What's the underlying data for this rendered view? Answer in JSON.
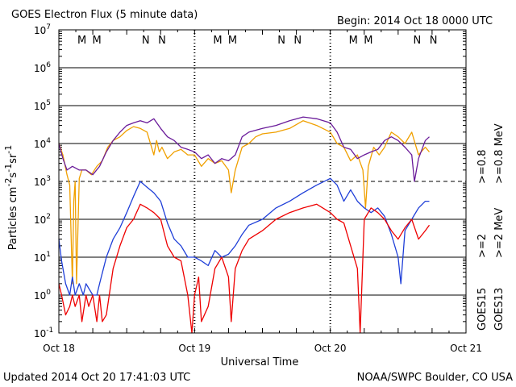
{
  "header": {
    "title": "GOES Electron Flux (5 minute data)",
    "begin": "Begin: 2014 Oct 18 0000 UTC"
  },
  "footer": {
    "updated": "Updated 2014 Oct 20 17:41:03 UTC",
    "credit": "NOAA/SWPC Boulder, CO USA"
  },
  "legend": {
    "series_right": [
      {
        "label": ">=0.8 MeV",
        "color": "#f0a000"
      },
      {
        "label": ">=2 MeV",
        "color": "#ee0000"
      }
    ],
    "series_left": [
      {
        "label": ">=0.8",
        "color": "#6a1b9a"
      },
      {
        "label": ">=2",
        "color": "#1f3fd8"
      }
    ],
    "satellites": [
      "GOES15",
      "GOES13"
    ]
  },
  "chart_data": {
    "type": "line",
    "title": "GOES Electron Flux (5 minute data)",
    "xlabel": "Universal Time",
    "ylabel": "Particles cm-2s-1sr-1",
    "y_scale": "log",
    "ylim": [
      0.1,
      10000000
    ],
    "xlim_days": [
      0,
      3
    ],
    "x_ticks": [
      {
        "label": "Oct 18",
        "day": 0
      },
      {
        "label": "Oct 19",
        "day": 1
      },
      {
        "label": "Oct 20",
        "day": 2
      },
      {
        "label": "Oct 21",
        "day": 3
      }
    ],
    "y_ticks": [
      {
        "base": "10",
        "exp": "-1",
        "value": 0.1
      },
      {
        "base": "10",
        "exp": "0",
        "value": 1
      },
      {
        "base": "10",
        "exp": "1",
        "value": 10
      },
      {
        "base": "10",
        "exp": "2",
        "value": 100
      },
      {
        "base": "10",
        "exp": "3",
        "value": 1000
      },
      {
        "base": "10",
        "exp": "4",
        "value": 10000
      },
      {
        "base": "10",
        "exp": "5",
        "value": 100000
      },
      {
        "base": "10",
        "exp": "6",
        "value": 1000000
      },
      {
        "base": "10",
        "exp": "7",
        "value": 10000000
      }
    ],
    "threshold_line": 1000,
    "midnight_markers": [
      {
        "day": 0.17,
        "label": "M",
        "color": "#ee0000"
      },
      {
        "day": 0.28,
        "label": "M",
        "color": "#1f3fd8"
      },
      {
        "day": 0.64,
        "label": "N",
        "color": "#ee0000"
      },
      {
        "day": 0.76,
        "label": "N",
        "color": "#1f3fd8"
      },
      {
        "day": 1.17,
        "label": "M",
        "color": "#ee0000"
      },
      {
        "day": 1.28,
        "label": "M",
        "color": "#1f3fd8"
      },
      {
        "day": 1.64,
        "label": "N",
        "color": "#ee0000"
      },
      {
        "day": 1.76,
        "label": "N",
        "color": "#1f3fd8"
      },
      {
        "day": 2.17,
        "label": "M",
        "color": "#ee0000"
      },
      {
        "day": 2.28,
        "label": "M",
        "color": "#1f3fd8"
      },
      {
        "day": 2.64,
        "label": "N",
        "color": "#ee0000"
      },
      {
        "day": 2.76,
        "label": "N",
        "color": "#1f3fd8"
      }
    ],
    "series": [
      {
        "name": "GOES13 >=0.8 MeV",
        "color": "#f0a000",
        "x": [
          0.0,
          0.03,
          0.06,
          0.08,
          0.1,
          0.11,
          0.12,
          0.13,
          0.15,
          0.17,
          0.2,
          0.24,
          0.28,
          0.32,
          0.36,
          0.4,
          0.45,
          0.5,
          0.55,
          0.6,
          0.65,
          0.7,
          0.72,
          0.74,
          0.76,
          0.8,
          0.85,
          0.9,
          0.95,
          1.0,
          1.05,
          1.1,
          1.15,
          1.2,
          1.25,
          1.27,
          1.3,
          1.35,
          1.4,
          1.45,
          1.5,
          1.6,
          1.7,
          1.8,
          1.9,
          2.0,
          2.05,
          2.1,
          2.15,
          2.2,
          2.24,
          2.26,
          2.28,
          2.32,
          2.36,
          2.4,
          2.45,
          2.5,
          2.55,
          2.6,
          2.65,
          2.7,
          2.73
        ],
        "values": [
          10000,
          5000,
          1500,
          800,
          2,
          300,
          1000,
          2,
          1200,
          2000,
          2000,
          1500,
          2500,
          3500,
          8000,
          12000,
          15000,
          22000,
          28000,
          25000,
          20000,
          5000,
          12000,
          6000,
          8000,
          4000,
          6000,
          7000,
          5000,
          5000,
          2500,
          4000,
          3000,
          3500,
          2000,
          500,
          2000,
          8000,
          10000,
          15000,
          18000,
          20000,
          25000,
          40000,
          30000,
          20000,
          10000,
          8000,
          3500,
          5000,
          2000,
          200,
          2500,
          8000,
          5000,
          8000,
          20000,
          15000,
          10000,
          20000,
          5000,
          8000,
          6000
        ]
      },
      {
        "name": "GOES15 >=0.8 MeV",
        "color": "#6a1b9a",
        "x": [
          0.0,
          0.03,
          0.06,
          0.1,
          0.15,
          0.2,
          0.25,
          0.3,
          0.35,
          0.4,
          0.45,
          0.5,
          0.55,
          0.6,
          0.65,
          0.7,
          0.75,
          0.8,
          0.85,
          0.9,
          0.95,
          1.0,
          1.05,
          1.1,
          1.15,
          1.2,
          1.25,
          1.3,
          1.35,
          1.4,
          1.5,
          1.6,
          1.7,
          1.8,
          1.9,
          2.0,
          2.05,
          2.1,
          2.15,
          2.2,
          2.25,
          2.3,
          2.35,
          2.4,
          2.45,
          2.5,
          2.55,
          2.6,
          2.62,
          2.65,
          2.7,
          2.73
        ],
        "values": [
          10000,
          4000,
          2000,
          2500,
          2000,
          2000,
          1500,
          2500,
          6000,
          12000,
          20000,
          30000,
          35000,
          40000,
          35000,
          45000,
          25000,
          15000,
          12000,
          8000,
          7000,
          6000,
          4000,
          5000,
          3000,
          4000,
          3500,
          5000,
          15000,
          20000,
          25000,
          30000,
          40000,
          50000,
          45000,
          35000,
          20000,
          8000,
          7000,
          4000,
          5000,
          6000,
          7000,
          12000,
          15000,
          12000,
          8000,
          5000,
          1000,
          4000,
          12000,
          15000
        ]
      },
      {
        "name": "GOES15 >=2 MeV",
        "color": "#1f3fd8",
        "x": [
          0.0,
          0.02,
          0.05,
          0.08,
          0.1,
          0.12,
          0.15,
          0.18,
          0.2,
          0.25,
          0.28,
          0.3,
          0.35,
          0.4,
          0.45,
          0.5,
          0.55,
          0.6,
          0.65,
          0.7,
          0.75,
          0.8,
          0.85,
          0.9,
          0.95,
          1.0,
          1.05,
          1.1,
          1.15,
          1.2,
          1.25,
          1.3,
          1.35,
          1.4,
          1.5,
          1.6,
          1.7,
          1.8,
          1.9,
          2.0,
          2.05,
          2.1,
          2.15,
          2.2,
          2.25,
          2.3,
          2.35,
          2.4,
          2.45,
          2.5,
          2.52,
          2.55,
          2.6,
          2.65,
          2.7,
          2.73
        ],
        "values": [
          30,
          8,
          2,
          1,
          3,
          1,
          2,
          1,
          2,
          1,
          1,
          2,
          10,
          30,
          60,
          150,
          400,
          1000,
          700,
          500,
          300,
          80,
          30,
          20,
          10,
          10,
          8,
          6,
          15,
          10,
          12,
          20,
          40,
          70,
          100,
          200,
          300,
          500,
          800,
          1200,
          800,
          300,
          600,
          300,
          200,
          150,
          200,
          120,
          40,
          10,
          2,
          50,
          100,
          200,
          300,
          300
        ]
      },
      {
        "name": "GOES13 >=2 MeV",
        "color": "#ee0000",
        "x": [
          0.0,
          0.02,
          0.05,
          0.08,
          0.1,
          0.12,
          0.15,
          0.17,
          0.2,
          0.22,
          0.25,
          0.28,
          0.3,
          0.32,
          0.35,
          0.4,
          0.45,
          0.5,
          0.55,
          0.6,
          0.65,
          0.7,
          0.75,
          0.8,
          0.85,
          0.9,
          0.95,
          0.98,
          1.0,
          1.03,
          1.05,
          1.1,
          1.15,
          1.2,
          1.25,
          1.27,
          1.3,
          1.35,
          1.4,
          1.5,
          1.6,
          1.7,
          1.8,
          1.9,
          2.0,
          2.05,
          2.1,
          2.15,
          2.2,
          2.22,
          2.25,
          2.3,
          2.35,
          2.4,
          2.45,
          2.5,
          2.55,
          2.6,
          2.65,
          2.7,
          2.73
        ],
        "values": [
          2,
          1,
          0.3,
          0.5,
          1,
          0.5,
          1,
          0.2,
          1,
          0.5,
          1,
          0.2,
          1,
          0.2,
          0.3,
          5,
          20,
          60,
          100,
          250,
          200,
          150,
          100,
          20,
          10,
          8,
          1,
          0.1,
          1,
          3,
          0.2,
          0.5,
          5,
          10,
          3,
          0.2,
          5,
          15,
          30,
          50,
          100,
          150,
          200,
          250,
          150,
          100,
          80,
          20,
          5,
          0.1,
          100,
          200,
          150,
          100,
          50,
          30,
          60,
          100,
          30,
          50,
          70
        ]
      }
    ]
  }
}
